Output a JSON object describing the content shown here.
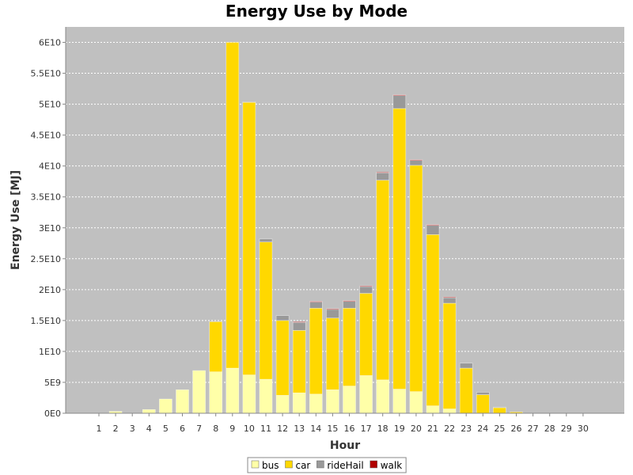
{
  "chart_data": {
    "type": "bar",
    "stacked": true,
    "title": "Energy Use by Mode",
    "xlabel": "Hour",
    "ylabel": "Energy Use [MJ]",
    "ylim": [
      0,
      62500000000
    ],
    "yticks": [
      0,
      5000000000,
      10000000000,
      15000000000,
      20000000000,
      25000000000,
      30000000000,
      35000000000,
      40000000000,
      45000000000,
      50000000000,
      55000000000,
      60000000000
    ],
    "ytick_labels": [
      "0E0",
      "5E9",
      "1E10",
      "1.5E10",
      "2E10",
      "2.5E10",
      "3E10",
      "3.5E10",
      "4E10",
      "4.5E10",
      "5E10",
      "5.5E10",
      "6E10"
    ],
    "grid": true,
    "legend_position": "bottom",
    "categories": [
      "1",
      "2",
      "3",
      "4",
      "5",
      "6",
      "7",
      "8",
      "9",
      "10",
      "11",
      "12",
      "13",
      "14",
      "15",
      "16",
      "17",
      "18",
      "19",
      "20",
      "21",
      "22",
      "23",
      "24",
      "25",
      "26",
      "27",
      "28",
      "29",
      "30"
    ],
    "series": [
      {
        "name": "bus",
        "color": "#ffffa8",
        "values": [
          0,
          300000000,
          0,
          600000000,
          2300000000,
          3800000000,
          6900000000,
          6700000000,
          7300000000,
          6200000000,
          5500000000,
          2900000000,
          3300000000,
          3100000000,
          3800000000,
          4400000000,
          6100000000,
          5400000000,
          3900000000,
          3500000000,
          1200000000,
          700000000,
          0,
          0,
          0,
          0,
          0,
          0,
          0,
          0
        ]
      },
      {
        "name": "car",
        "color": "#ffd800",
        "values": [
          0,
          0,
          0,
          0,
          0,
          0,
          0,
          8100000000,
          52700000000,
          44100000000,
          22200000000,
          12100000000,
          10100000000,
          13900000000,
          11600000000,
          12600000000,
          13300000000,
          32300000000,
          45400000000,
          36600000000,
          27700000000,
          17100000000,
          7300000000,
          3000000000,
          900000000,
          200000000,
          0,
          0,
          0,
          0
        ]
      },
      {
        "name": "rideHail",
        "color": "#999999",
        "values": [
          0,
          0,
          0,
          0,
          0,
          0,
          0,
          0,
          0,
          100000000,
          500000000,
          800000000,
          1300000000,
          1000000000,
          1400000000,
          1100000000,
          1100000000,
          1200000000,
          2100000000,
          800000000,
          1500000000,
          900000000,
          800000000,
          400000000,
          100000000,
          0,
          0,
          0,
          0,
          0
        ]
      },
      {
        "name": "walk",
        "color": "#b00000",
        "values": [
          0,
          0,
          0,
          0,
          0,
          0,
          0,
          0,
          0,
          0,
          0,
          0,
          100000000,
          100000000,
          100000000,
          100000000,
          100000000,
          100000000,
          100000000,
          100000000,
          100000000,
          100000000,
          0,
          0,
          0,
          0,
          0,
          0,
          0,
          0
        ]
      }
    ]
  }
}
